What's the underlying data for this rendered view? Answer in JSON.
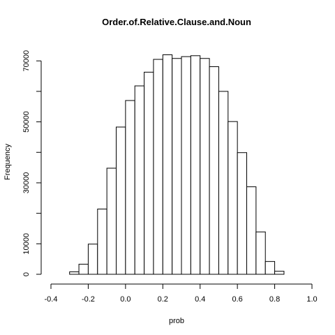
{
  "chart_data": {
    "type": "bar",
    "title": "Order.of.Relative.Clause.and.Noun",
    "xlabel": "prob",
    "ylabel": "Frequency",
    "xlim": [
      -0.4,
      1.0
    ],
    "ylim": [
      0,
      72000
    ],
    "x_ticks": [
      -0.4,
      -0.2,
      0.0,
      0.2,
      0.4,
      0.6,
      0.8,
      1.0
    ],
    "x_tick_labels": [
      "-0.4",
      "-0.2",
      "0.0",
      "0.2",
      "0.4",
      "0.6",
      "0.8",
      "1.0"
    ],
    "y_ticks": [
      0,
      10000,
      30000,
      50000,
      70000
    ],
    "y_tick_labels": [
      "0",
      "10000",
      "30000",
      "50000",
      "70000"
    ],
    "bin_width": 0.05,
    "bins": [
      {
        "start": -0.35,
        "value": 0
      },
      {
        "start": -0.3,
        "value": 800
      },
      {
        "start": -0.25,
        "value": 3300
      },
      {
        "start": -0.2,
        "value": 9900
      },
      {
        "start": -0.15,
        "value": 21400
      },
      {
        "start": -0.1,
        "value": 34800
      },
      {
        "start": -0.05,
        "value": 48300
      },
      {
        "start": 0.0,
        "value": 57000
      },
      {
        "start": 0.05,
        "value": 61800
      },
      {
        "start": 0.1,
        "value": 66300
      },
      {
        "start": 0.15,
        "value": 70500
      },
      {
        "start": 0.2,
        "value": 72000
      },
      {
        "start": 0.25,
        "value": 70800
      },
      {
        "start": 0.3,
        "value": 71400
      },
      {
        "start": 0.35,
        "value": 71700
      },
      {
        "start": 0.4,
        "value": 70800
      },
      {
        "start": 0.45,
        "value": 68100
      },
      {
        "start": 0.5,
        "value": 60000
      },
      {
        "start": 0.55,
        "value": 50100
      },
      {
        "start": 0.6,
        "value": 39900
      },
      {
        "start": 0.65,
        "value": 28700
      },
      {
        "start": 0.7,
        "value": 13900
      },
      {
        "start": 0.75,
        "value": 4200
      },
      {
        "start": 0.8,
        "value": 1000
      },
      {
        "start": 0.85,
        "value": 0
      },
      {
        "start": 0.9,
        "value": 0
      }
    ]
  }
}
